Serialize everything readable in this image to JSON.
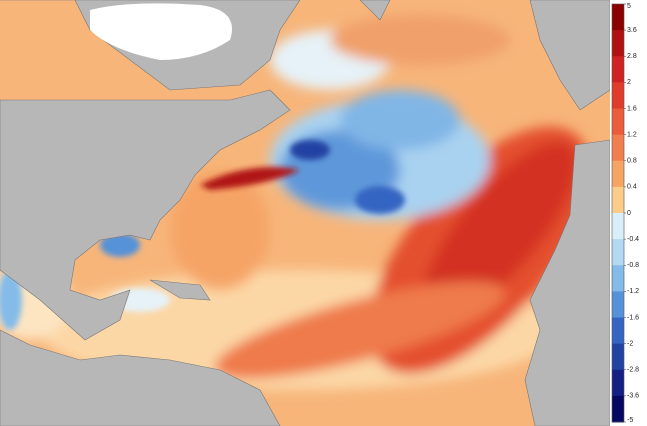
{
  "colorbar": {
    "labels": [
      5,
      3.6,
      2.8,
      2,
      1.6,
      1.2,
      0.8,
      0.4,
      0,
      -0.4,
      -0.8,
      -1.2,
      -1.6,
      -2,
      -2.8,
      -3.6,
      -5
    ],
    "colors": [
      "#8b0000",
      "#b01212",
      "#cf2323",
      "#e03c2b",
      "#ea5c3c",
      "#f17e4e",
      "#f6a466",
      "#fbcd8a",
      "#d9eef9",
      "#b2d9f1",
      "#84bbe8",
      "#5592d8",
      "#3565c2",
      "#2343a3",
      "#141f83",
      "#050762"
    ]
  }
}
